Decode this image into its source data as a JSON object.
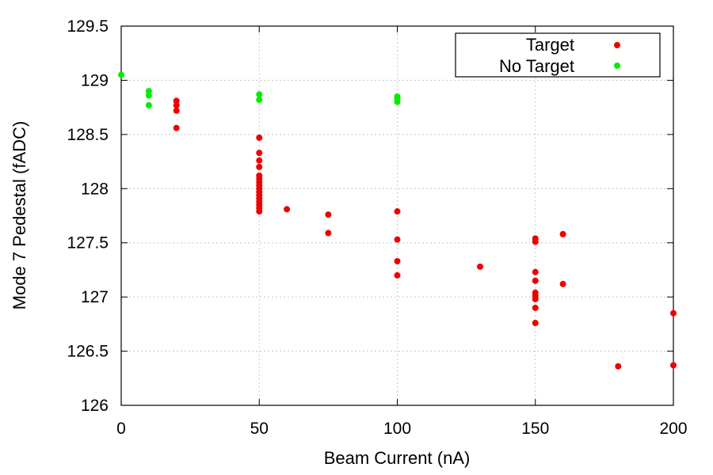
{
  "chart_data": {
    "type": "scatter",
    "xlabel": "Beam Current (nA)",
    "ylabel": "Mode 7 Pedestal (fADC)",
    "xlim": [
      0,
      200
    ],
    "ylim": [
      126,
      129.5
    ],
    "xticks": [
      "0",
      "50",
      "100",
      "150",
      "200"
    ],
    "yticks": [
      "126",
      "126.5",
      "127",
      "127.5",
      "128",
      "128.5",
      "129",
      "129.5"
    ],
    "grid": true,
    "legend_position": "top-right",
    "series": [
      {
        "name": "Target",
        "color": "#ee0000",
        "points": [
          [
            20,
            128.81
          ],
          [
            20,
            128.77
          ],
          [
            20,
            128.72
          ],
          [
            20,
            128.56
          ],
          [
            50,
            128.47
          ],
          [
            50,
            128.33
          ],
          [
            50,
            128.26
          ],
          [
            50,
            128.2
          ],
          [
            50,
            128.12
          ],
          [
            50,
            128.09
          ],
          [
            50,
            128.06
          ],
          [
            50,
            128.03
          ],
          [
            50,
            128.0
          ],
          [
            50,
            127.97
          ],
          [
            50,
            127.94
          ],
          [
            50,
            127.91
          ],
          [
            50,
            127.88
          ],
          [
            50,
            127.85
          ],
          [
            50,
            127.82
          ],
          [
            50,
            127.79
          ],
          [
            60,
            127.81
          ],
          [
            75,
            127.76
          ],
          [
            75,
            127.59
          ],
          [
            100,
            127.79
          ],
          [
            100,
            127.53
          ],
          [
            100,
            127.33
          ],
          [
            100,
            127.2
          ],
          [
            130,
            127.28
          ],
          [
            150,
            127.54
          ],
          [
            150,
            127.51
          ],
          [
            150,
            127.23
          ],
          [
            150,
            127.15
          ],
          [
            150,
            127.04
          ],
          [
            150,
            127.01
          ],
          [
            150,
            126.98
          ],
          [
            150,
            126.9
          ],
          [
            150,
            126.76
          ],
          [
            160,
            127.58
          ],
          [
            160,
            127.12
          ],
          [
            180,
            126.36
          ],
          [
            200,
            126.85
          ],
          [
            200,
            126.37
          ]
        ]
      },
      {
        "name": "No Target",
        "color": "#00ee00",
        "points": [
          [
            0,
            129.05
          ],
          [
            10,
            128.9
          ],
          [
            10,
            128.86
          ],
          [
            10,
            128.77
          ],
          [
            50,
            128.87
          ],
          [
            50,
            128.82
          ],
          [
            100,
            128.85
          ],
          [
            100,
            128.83
          ],
          [
            100,
            128.8
          ]
        ]
      }
    ]
  }
}
